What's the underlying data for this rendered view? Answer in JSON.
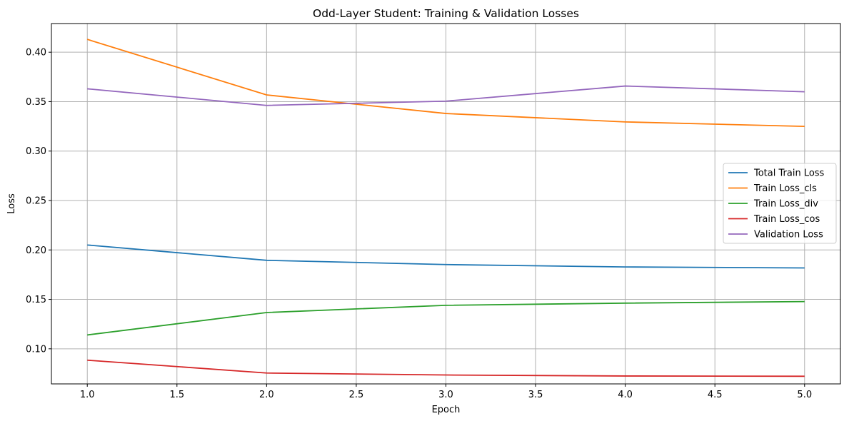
{
  "chart_data": {
    "type": "line",
    "title": "Odd-Layer Student: Training & Validation Losses",
    "xlabel": "Epoch",
    "ylabel": "Loss",
    "x": [
      1,
      2,
      3,
      4,
      5
    ],
    "xlim": [
      0.8,
      5.2
    ],
    "ylim": [
      0.0645,
      0.429
    ],
    "xticks": [
      "1.0",
      "1.5",
      "2.0",
      "2.5",
      "3.0",
      "3.5",
      "4.0",
      "4.5",
      "5.0"
    ],
    "yticks": [
      "0.10",
      "0.15",
      "0.20",
      "0.25",
      "0.30",
      "0.35",
      "0.40"
    ],
    "grid": true,
    "legend_position": "center-right",
    "series": [
      {
        "name": "Total Train Loss",
        "color": "#1f77b4",
        "values": [
          0.205,
          0.1895,
          0.1852,
          0.1828,
          0.1818
        ]
      },
      {
        "name": "Train Loss_cls",
        "color": "#ff7f0e",
        "values": [
          0.413,
          0.3568,
          0.338,
          0.3295,
          0.325
        ]
      },
      {
        "name": "Train Loss_div",
        "color": "#2ca02c",
        "values": [
          0.114,
          0.1367,
          0.144,
          0.1462,
          0.1478
        ]
      },
      {
        "name": "Train Loss_cos",
        "color": "#d62728",
        "values": [
          0.0885,
          0.0755,
          0.0735,
          0.0725,
          0.0722
        ]
      },
      {
        "name": "Validation Loss",
        "color": "#9467bd",
        "values": [
          0.363,
          0.3462,
          0.3505,
          0.3658,
          0.36
        ]
      }
    ]
  }
}
